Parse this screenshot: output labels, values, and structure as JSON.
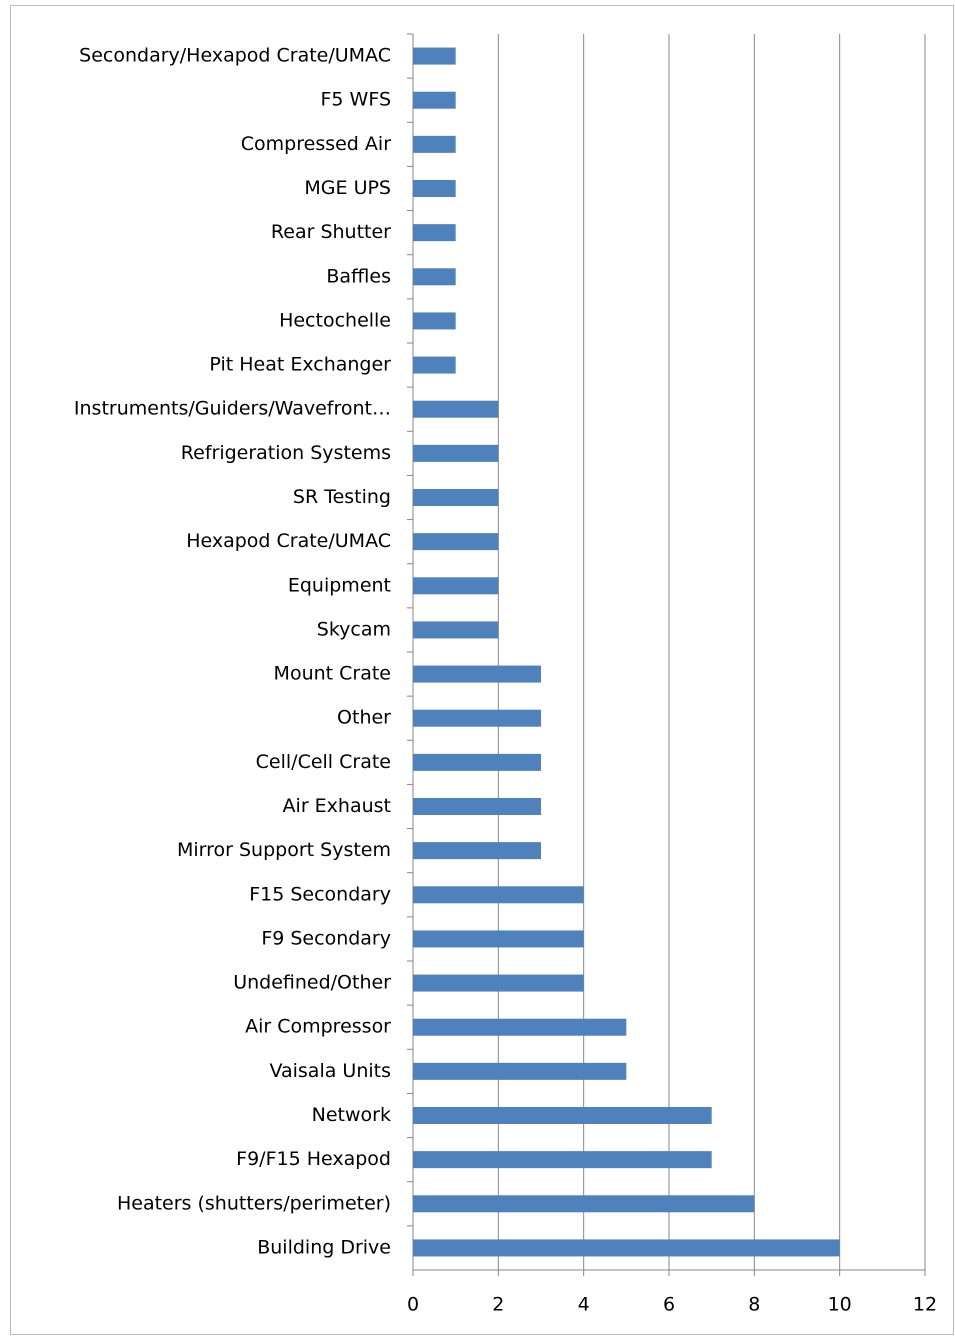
{
  "chart_data": {
    "type": "barh",
    "categories": [
      "Secondary/Hexapod Crate/UMAC",
      "F5 WFS",
      "Compressed Air",
      "MGE UPS",
      "Rear Shutter",
      "Baffles",
      "Hectochelle",
      "Pit Heat Exchanger",
      "Instruments/Guiders/Wavefront…",
      "Refrigeration Systems",
      "SR Testing",
      "Hexapod Crate/UMAC",
      "Equipment",
      "Skycam",
      "Mount Crate",
      "Other",
      "Cell/Cell Crate",
      "Air Exhaust",
      "Mirror Support System",
      "F15 Secondary",
      "F9 Secondary",
      "Undefined/Other",
      "Air Compressor",
      "Vaisala Units",
      "Network",
      "F9/F15 Hexapod",
      "Heaters (shutters/perimeter)",
      "Building Drive"
    ],
    "values": [
      1,
      1,
      1,
      1,
      1,
      1,
      1,
      1,
      2,
      2,
      2,
      2,
      2,
      2,
      3,
      3,
      3,
      3,
      3,
      4,
      4,
      4,
      5,
      5,
      7,
      7,
      8,
      10
    ],
    "color": "#4f81bd",
    "xlim": [
      0,
      12
    ],
    "xticks": [
      0,
      2,
      4,
      6,
      8,
      10,
      12
    ],
    "grid": true
  }
}
